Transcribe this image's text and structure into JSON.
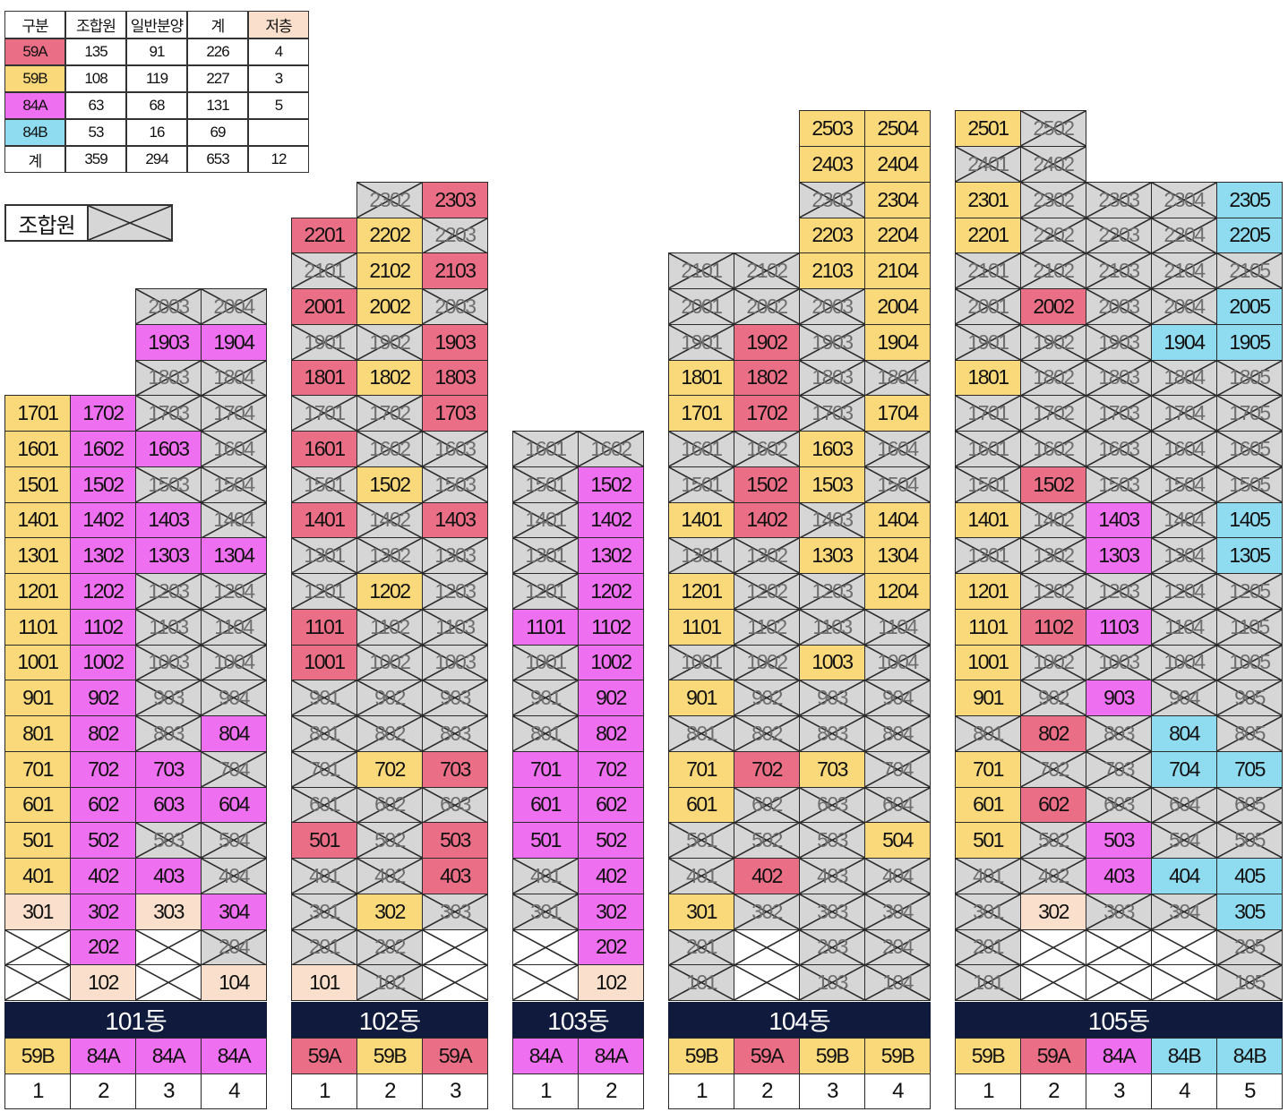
{
  "colors": {
    "59A": "#ea6f86",
    "59B": "#fad97a",
    "84A": "#ee6ff0",
    "84B": "#8fdcf1",
    "low": "#fae0cc",
    "union": "#d6d6d6",
    "empty": "#ffffff",
    "bar": "#0f1a3c"
  },
  "summary_table": {
    "headers": [
      "구분",
      "조합원",
      "일반분양",
      "계",
      "저층"
    ],
    "rows": [
      {
        "type": "59A",
        "cells": [
          "59A",
          "135",
          "91",
          "226",
          "4"
        ]
      },
      {
        "type": "59B",
        "cells": [
          "59B",
          "108",
          "119",
          "227",
          "3"
        ]
      },
      {
        "type": "84A",
        "cells": [
          "84A",
          "63",
          "68",
          "131",
          "5"
        ]
      },
      {
        "type": "84B",
        "cells": [
          "84B",
          "53",
          "16",
          "69",
          ""
        ]
      },
      {
        "type": "total",
        "cells": [
          "계",
          "359",
          "294",
          "653",
          "12"
        ]
      }
    ]
  },
  "legend": {
    "label": "조합원",
    "symbol": "crossed-box-icon"
  },
  "buildings": [
    {
      "name": "101동",
      "types": [
        "59B",
        "84A",
        "84A",
        "84A"
      ],
      "lines": [
        "1",
        "2",
        "3",
        "4"
      ],
      "floors": [
        {
          "floor": 20,
          "units": [
            "",
            "",
            "u",
            "u"
          ]
        },
        {
          "floor": 19,
          "units": [
            "",
            "",
            "84A",
            "84A"
          ]
        },
        {
          "floor": 18,
          "units": [
            "",
            "",
            "u",
            "u"
          ]
        },
        {
          "floor": 17,
          "units": [
            "59B",
            "84A",
            "u",
            "u"
          ]
        },
        {
          "floor": 16,
          "units": [
            "59B",
            "84A",
            "84A",
            "u"
          ]
        },
        {
          "floor": 15,
          "units": [
            "59B",
            "84A",
            "u",
            "u"
          ]
        },
        {
          "floor": 14,
          "units": [
            "59B",
            "84A",
            "84A",
            "u"
          ]
        },
        {
          "floor": 13,
          "units": [
            "59B",
            "84A",
            "84A",
            "84A"
          ]
        },
        {
          "floor": 12,
          "units": [
            "59B",
            "84A",
            "u",
            "u"
          ]
        },
        {
          "floor": 11,
          "units": [
            "59B",
            "84A",
            "u",
            "u"
          ]
        },
        {
          "floor": 10,
          "units": [
            "59B",
            "84A",
            "u",
            "u"
          ]
        },
        {
          "floor": 9,
          "units": [
            "59B",
            "84A",
            "u",
            "u"
          ]
        },
        {
          "floor": 8,
          "units": [
            "59B",
            "84A",
            "u",
            "84A"
          ]
        },
        {
          "floor": 7,
          "units": [
            "59B",
            "84A",
            "84A",
            "u"
          ]
        },
        {
          "floor": 6,
          "units": [
            "59B",
            "84A",
            "84A",
            "84A"
          ]
        },
        {
          "floor": 5,
          "units": [
            "59B",
            "84A",
            "u",
            "u"
          ]
        },
        {
          "floor": 4,
          "units": [
            "59B",
            "84A",
            "84A",
            "u"
          ]
        },
        {
          "floor": 3,
          "units": [
            "low",
            "84A",
            "low",
            "84A"
          ]
        },
        {
          "floor": 2,
          "units": [
            "x",
            "84A",
            "x",
            "u"
          ]
        },
        {
          "floor": 1,
          "units": [
            "x",
            "low",
            "x",
            "low"
          ]
        }
      ]
    },
    {
      "name": "102동",
      "types": [
        "59A",
        "59B",
        "59A"
      ],
      "lines": [
        "1",
        "2",
        "3"
      ],
      "floors": [
        {
          "floor": 23,
          "units": [
            "",
            "u",
            "59A"
          ]
        },
        {
          "floor": 22,
          "units": [
            "59A",
            "59B",
            "u"
          ]
        },
        {
          "floor": 21,
          "units": [
            "u",
            "59B",
            "59A"
          ]
        },
        {
          "floor": 20,
          "units": [
            "59A",
            "59B",
            "u"
          ]
        },
        {
          "floor": 19,
          "units": [
            "u",
            "u",
            "59A"
          ]
        },
        {
          "floor": 18,
          "units": [
            "59A",
            "59B",
            "59A"
          ]
        },
        {
          "floor": 17,
          "units": [
            "u",
            "u",
            "59A"
          ]
        },
        {
          "floor": 16,
          "units": [
            "59A",
            "u",
            "u"
          ]
        },
        {
          "floor": 15,
          "units": [
            "u",
            "59B",
            "u"
          ]
        },
        {
          "floor": 14,
          "units": [
            "59A",
            "u",
            "59A"
          ]
        },
        {
          "floor": 13,
          "units": [
            "u",
            "u",
            "u"
          ]
        },
        {
          "floor": 12,
          "units": [
            "u",
            "59B",
            "u"
          ]
        },
        {
          "floor": 11,
          "units": [
            "59A",
            "u",
            "u"
          ]
        },
        {
          "floor": 10,
          "units": [
            "59A",
            "u",
            "u"
          ]
        },
        {
          "floor": 9,
          "units": [
            "u",
            "u",
            "u"
          ]
        },
        {
          "floor": 8,
          "units": [
            "u",
            "u",
            "u"
          ]
        },
        {
          "floor": 7,
          "units": [
            "u",
            "59B",
            "59A"
          ]
        },
        {
          "floor": 6,
          "units": [
            "u",
            "u",
            "u"
          ]
        },
        {
          "floor": 5,
          "units": [
            "59A",
            "u",
            "59A"
          ]
        },
        {
          "floor": 4,
          "units": [
            "u",
            "u",
            "59A"
          ]
        },
        {
          "floor": 3,
          "units": [
            "u",
            "59B",
            "u"
          ]
        },
        {
          "floor": 2,
          "units": [
            "u",
            "u",
            "x"
          ]
        },
        {
          "floor": 1,
          "units": [
            "low",
            "u",
            "x"
          ]
        }
      ]
    },
    {
      "name": "103동",
      "types": [
        "84A",
        "84A"
      ],
      "lines": [
        "1",
        "2"
      ],
      "floors": [
        {
          "floor": 16,
          "units": [
            "u",
            "u"
          ]
        },
        {
          "floor": 15,
          "units": [
            "u",
            "84A"
          ]
        },
        {
          "floor": 14,
          "units": [
            "u",
            "84A"
          ]
        },
        {
          "floor": 13,
          "units": [
            "u",
            "84A"
          ]
        },
        {
          "floor": 12,
          "units": [
            "u",
            "84A"
          ]
        },
        {
          "floor": 11,
          "units": [
            "84A",
            "84A"
          ]
        },
        {
          "floor": 10,
          "units": [
            "u",
            "84A"
          ]
        },
        {
          "floor": 9,
          "units": [
            "u",
            "84A"
          ]
        },
        {
          "floor": 8,
          "units": [
            "u",
            "84A"
          ]
        },
        {
          "floor": 7,
          "units": [
            "84A",
            "84A"
          ]
        },
        {
          "floor": 6,
          "units": [
            "84A",
            "84A"
          ]
        },
        {
          "floor": 5,
          "units": [
            "84A",
            "84A"
          ]
        },
        {
          "floor": 4,
          "units": [
            "u",
            "84A"
          ]
        },
        {
          "floor": 3,
          "units": [
            "u",
            "84A"
          ]
        },
        {
          "floor": 2,
          "units": [
            "x",
            "84A"
          ]
        },
        {
          "floor": 1,
          "units": [
            "x",
            "low"
          ]
        }
      ]
    },
    {
      "name": "104동",
      "types": [
        "59B",
        "59A",
        "59B",
        "59B"
      ],
      "lines": [
        "1",
        "2",
        "3",
        "4"
      ],
      "floors": [
        {
          "floor": 25,
          "units": [
            "",
            "",
            "59B",
            "59B"
          ]
        },
        {
          "floor": 24,
          "units": [
            "",
            "",
            "59B",
            "59B"
          ]
        },
        {
          "floor": 23,
          "units": [
            "",
            "",
            "u",
            "59B"
          ]
        },
        {
          "floor": 22,
          "units": [
            "",
            "",
            "59B",
            "59B"
          ]
        },
        {
          "floor": 21,
          "units": [
            "u",
            "u",
            "59B",
            "59B"
          ]
        },
        {
          "floor": 20,
          "units": [
            "u",
            "u",
            "u",
            "59B"
          ]
        },
        {
          "floor": 19,
          "units": [
            "u",
            "59A",
            "u",
            "59B"
          ]
        },
        {
          "floor": 18,
          "units": [
            "59B",
            "59A",
            "u",
            "u"
          ]
        },
        {
          "floor": 17,
          "units": [
            "59B",
            "59A",
            "u",
            "59B"
          ]
        },
        {
          "floor": 16,
          "units": [
            "u",
            "u",
            "59B",
            "u"
          ]
        },
        {
          "floor": 15,
          "units": [
            "u",
            "59A",
            "59B",
            "u"
          ]
        },
        {
          "floor": 14,
          "units": [
            "59B",
            "59A",
            "u",
            "59B"
          ]
        },
        {
          "floor": 13,
          "units": [
            "u",
            "u",
            "59B",
            "59B"
          ]
        },
        {
          "floor": 12,
          "units": [
            "59B",
            "u",
            "u",
            "59B"
          ]
        },
        {
          "floor": 11,
          "units": [
            "59B",
            "u",
            "u",
            "u"
          ]
        },
        {
          "floor": 10,
          "units": [
            "u",
            "u",
            "59B",
            "u"
          ]
        },
        {
          "floor": 9,
          "units": [
            "59B",
            "u",
            "u",
            "u"
          ]
        },
        {
          "floor": 8,
          "units": [
            "u",
            "u",
            "u",
            "u"
          ]
        },
        {
          "floor": 7,
          "units": [
            "59B",
            "59A",
            "59B",
            "u"
          ]
        },
        {
          "floor": 6,
          "units": [
            "59B",
            "u",
            "u",
            "u"
          ]
        },
        {
          "floor": 5,
          "units": [
            "u",
            "u",
            "u",
            "59B"
          ]
        },
        {
          "floor": 4,
          "units": [
            "u",
            "59A",
            "u",
            "u"
          ]
        },
        {
          "floor": 3,
          "units": [
            "59B",
            "u",
            "u",
            "u"
          ]
        },
        {
          "floor": 2,
          "units": [
            "u",
            "x",
            "u",
            "u"
          ]
        },
        {
          "floor": 1,
          "units": [
            "u",
            "x",
            "u",
            "u"
          ]
        }
      ]
    },
    {
      "name": "105동",
      "types": [
        "59B",
        "59A",
        "84A",
        "84B",
        "84B"
      ],
      "lines": [
        "1",
        "2",
        "3",
        "4",
        "5"
      ],
      "floors": [
        {
          "floor": 25,
          "units": [
            "59B",
            "u",
            "",
            "",
            ""
          ]
        },
        {
          "floor": 24,
          "units": [
            "u",
            "u",
            "",
            "",
            ""
          ]
        },
        {
          "floor": 23,
          "units": [
            "59B",
            "u",
            "u",
            "u",
            "84B"
          ]
        },
        {
          "floor": 22,
          "units": [
            "59B",
            "u",
            "u",
            "u",
            "84B"
          ]
        },
        {
          "floor": 21,
          "units": [
            "u",
            "u",
            "u",
            "u",
            "u"
          ]
        },
        {
          "floor": 20,
          "units": [
            "u",
            "59A",
            "u",
            "u",
            "84B"
          ]
        },
        {
          "floor": 19,
          "units": [
            "u",
            "u",
            "u",
            "84B",
            "84B"
          ]
        },
        {
          "floor": 18,
          "units": [
            "59B",
            "u",
            "u",
            "u",
            "u"
          ]
        },
        {
          "floor": 17,
          "units": [
            "u",
            "u",
            "u",
            "u",
            "u"
          ]
        },
        {
          "floor": 16,
          "units": [
            "u",
            "u",
            "u",
            "u",
            "u"
          ]
        },
        {
          "floor": 15,
          "units": [
            "u",
            "59A",
            "u",
            "u",
            "u"
          ]
        },
        {
          "floor": 14,
          "units": [
            "59B",
            "u",
            "84A",
            "u",
            "84B"
          ]
        },
        {
          "floor": 13,
          "units": [
            "u",
            "u",
            "84A",
            "u",
            "84B"
          ]
        },
        {
          "floor": 12,
          "units": [
            "59B",
            "u",
            "u",
            "u",
            "u"
          ]
        },
        {
          "floor": 11,
          "units": [
            "59B",
            "59A",
            "84A",
            "u",
            "u"
          ]
        },
        {
          "floor": 10,
          "units": [
            "59B",
            "u",
            "u",
            "u",
            "u"
          ]
        },
        {
          "floor": 9,
          "units": [
            "59B",
            "u",
            "84A",
            "u",
            "u"
          ]
        },
        {
          "floor": 8,
          "units": [
            "u",
            "59A",
            "u",
            "84B",
            "u"
          ]
        },
        {
          "floor": 7,
          "units": [
            "59B",
            "u",
            "u",
            "84B",
            "84B"
          ]
        },
        {
          "floor": 6,
          "units": [
            "59B",
            "59A",
            "u",
            "u",
            "u"
          ]
        },
        {
          "floor": 5,
          "units": [
            "59B",
            "u",
            "84A",
            "u",
            "u"
          ]
        },
        {
          "floor": 4,
          "units": [
            "u",
            "u",
            "84A",
            "84B",
            "84B"
          ]
        },
        {
          "floor": 3,
          "units": [
            "u",
            "low",
            "u",
            "u",
            "84B"
          ]
        },
        {
          "floor": 2,
          "units": [
            "u",
            "x",
            "x",
            "x",
            "u"
          ]
        },
        {
          "floor": 1,
          "units": [
            "u",
            "x",
            "x",
            "x",
            "u"
          ]
        }
      ]
    }
  ]
}
